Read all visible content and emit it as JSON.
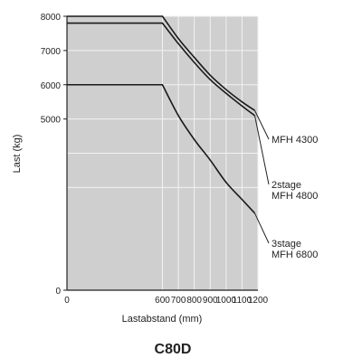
{
  "chart_data": {
    "type": "line",
    "title": "",
    "caption": "C80D",
    "xlabel": "Lastabstand (mm)",
    "ylabel": "Last (kg)",
    "xlim": [
      0,
      1200
    ],
    "ylim": [
      0,
      8000
    ],
    "x_ticks": [
      0,
      600,
      700,
      800,
      900,
      1000,
      1100,
      1200
    ],
    "y_ticks": [
      0,
      5000,
      6000,
      7000,
      8000
    ],
    "y_grid": [
      0,
      3000,
      4000,
      5000,
      6000,
      7000,
      8000
    ],
    "grid": true,
    "colors": {
      "plot_background": "#cfcfcf",
      "grid": "#f2f2f2",
      "line": "#1a1a1a"
    },
    "series": [
      {
        "name": "MFH 4300",
        "label_lines": [
          "MFH 4300"
        ],
        "x": [
          0,
          600,
          700,
          800,
          900,
          1000,
          1100,
          1180
        ],
        "y": [
          8000,
          8000,
          7350,
          6800,
          6280,
          5860,
          5500,
          5250
        ]
      },
      {
        "name": "2stage MFH 4800",
        "label_lines": [
          "2stage",
          "MFH 4800"
        ],
        "x": [
          0,
          600,
          700,
          800,
          900,
          1000,
          1100,
          1180
        ],
        "y": [
          7800,
          7800,
          7200,
          6650,
          6150,
          5750,
          5380,
          5100
        ]
      },
      {
        "name": "3stage MFH 6800",
        "label_lines": [
          "3stage",
          "MFH 6800"
        ],
        "x": [
          0,
          600,
          700,
          800,
          900,
          1000,
          1100,
          1180
        ],
        "y": [
          6000,
          6000,
          5100,
          4400,
          3800,
          3150,
          2650,
          2250
        ]
      }
    ]
  }
}
